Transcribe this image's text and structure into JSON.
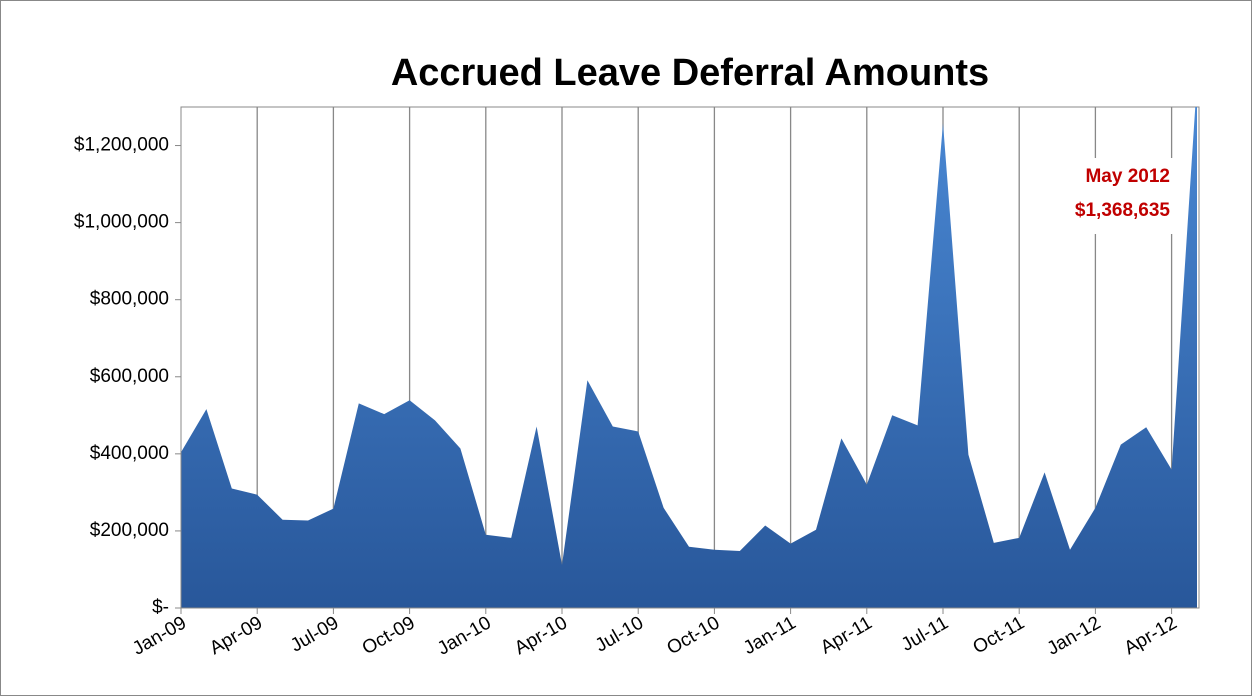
{
  "chart_data": {
    "type": "area",
    "title": "Accrued Leave Deferral Amounts",
    "categories": [
      "Jan-09",
      null,
      null,
      "Apr-09",
      null,
      null,
      "Jul-09",
      null,
      null,
      "Oct-09",
      null,
      null,
      "Jan-10",
      null,
      null,
      "Apr-10",
      null,
      null,
      "Jul-10",
      null,
      null,
      "Oct-10",
      null,
      null,
      "Jan-11",
      null,
      null,
      "Apr-11",
      null,
      null,
      "Jul-11",
      null,
      null,
      "Oct-11",
      null,
      null,
      "Jan-12",
      null,
      null,
      "Apr-12",
      null
    ],
    "values": [
      404000,
      516000,
      310000,
      294000,
      229000,
      227000,
      258000,
      531000,
      503000,
      539000,
      487000,
      414000,
      190000,
      182000,
      471000,
      112000,
      591000,
      471000,
      458000,
      260000,
      159000,
      151000,
      148000,
      214000,
      167000,
      203000,
      440000,
      320000,
      500000,
      474000,
      1258000,
      398000,
      169000,
      182000,
      352000,
      151000,
      260000,
      424000,
      469000,
      359000,
      1368635
    ],
    "value_labels": [
      null,
      null,
      null,
      null,
      null,
      null,
      null,
      null,
      null,
      null,
      null,
      null,
      null,
      null,
      null,
      null,
      null,
      null,
      null,
      null,
      null,
      null,
      null,
      null,
      null,
      null,
      null,
      null,
      null,
      null,
      null,
      null,
      null,
      null,
      null,
      null,
      null,
      null,
      null,
      null,
      "$1,368,635"
    ],
    "annotation": "May 2012",
    "color": "#3a6fb8",
    "ylim": [
      0,
      1300000
    ],
    "yticks": [
      {
        "value": 0,
        "label": "$-"
      },
      {
        "value": 200000,
        "label": "$200,000"
      },
      {
        "value": 400000,
        "label": "$400,000"
      },
      {
        "value": 600000,
        "label": "$600,000"
      },
      {
        "value": 800000,
        "label": "$800,000"
      },
      {
        "value": 1000000,
        "label": "$1,000,000"
      },
      {
        "value": 1200000,
        "label": "$1,200,000"
      }
    ],
    "grid": "x"
  }
}
